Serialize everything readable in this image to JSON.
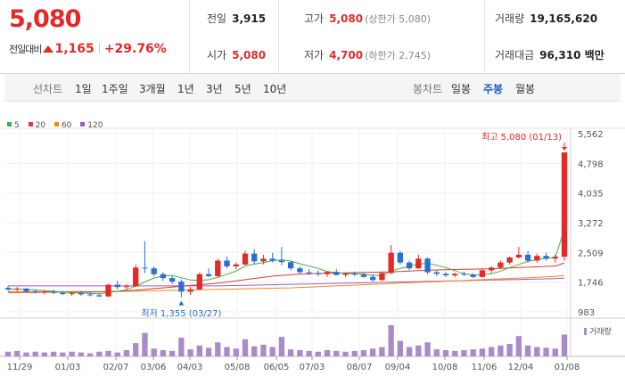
{
  "price": {
    "current": "5,080",
    "change_label": "전일대비",
    "change_amount": "1,165",
    "change_pct": "+29.76%"
  },
  "stats": {
    "prev_close": {
      "label": "전일",
      "value": "3,915"
    },
    "open": {
      "label": "시가",
      "value": "5,080"
    },
    "high": {
      "label": "고가",
      "value": "5,080",
      "sub": "(상한가 5,080)"
    },
    "low": {
      "label": "저가",
      "value": "4,700",
      "sub": "(하한가 2,745)"
    },
    "volume": {
      "label": "거래량",
      "value": "19,165,620"
    },
    "amount": {
      "label": "거래대금",
      "value": "96,310 백만"
    }
  },
  "toolbar": {
    "line_label": "선차트",
    "ranges": [
      "1일",
      "1주일",
      "3개월",
      "1년",
      "3년",
      "5년",
      "10년"
    ],
    "candle_label": "봉차트",
    "periods": [
      "일봉",
      "주봉",
      "월봉"
    ],
    "active_period": "주봉"
  },
  "legend": [
    {
      "label": "5",
      "color": "#3db33d"
    },
    {
      "label": "20",
      "color": "#e03a3a"
    },
    {
      "label": "60",
      "color": "#f08a1c"
    },
    {
      "label": "120",
      "color": "#9a5cc6"
    }
  ],
  "colors": {
    "up": "#e22a2a",
    "down": "#2b6ed6",
    "volume": "#a88bc8"
  },
  "chart_data": {
    "type": "candlestick",
    "y_ticks": [
      "5,562",
      "4,798",
      "4,035",
      "3,272",
      "2,509",
      "1,746",
      "983"
    ],
    "ylim": [
      983,
      5562
    ],
    "x_labels": [
      "11/29",
      "01/03",
      "02/07",
      "03/06",
      "04/03",
      "05/08",
      "06/05",
      "07/03",
      "08/07",
      "09/04",
      "10/08",
      "11/06",
      "12/04",
      "01/08"
    ],
    "high_annotation": "최고 5,080 (01/13)",
    "low_annotation": "최저 1,355 (03/27)",
    "volume_label": "거래량",
    "candles": [
      [
        1600,
        1650,
        1520,
        1560
      ],
      [
        1560,
        1620,
        1500,
        1580
      ],
      [
        1580,
        1600,
        1480,
        1510
      ],
      [
        1510,
        1560,
        1450,
        1480
      ],
      [
        1480,
        1540,
        1430,
        1500
      ],
      [
        1500,
        1560,
        1440,
        1470
      ],
      [
        1470,
        1520,
        1410,
        1440
      ],
      [
        1440,
        1500,
        1390,
        1460
      ],
      [
        1460,
        1520,
        1400,
        1430
      ],
      [
        1430,
        1480,
        1380,
        1410
      ],
      [
        1410,
        1460,
        1360,
        1380
      ],
      [
        1380,
        1700,
        1360,
        1680
      ],
      [
        1680,
        1780,
        1560,
        1620
      ],
      [
        1620,
        1700,
        1550,
        1640
      ],
      [
        1640,
        2200,
        1620,
        2120
      ],
      [
        2120,
        2800,
        1980,
        2100
      ],
      [
        2100,
        2150,
        1900,
        1950
      ],
      [
        1950,
        2000,
        1780,
        1850
      ],
      [
        1850,
        1900,
        1700,
        1760
      ],
      [
        1760,
        1820,
        1355,
        1500
      ],
      [
        1500,
        1620,
        1420,
        1560
      ],
      [
        1560,
        2000,
        1540,
        1950
      ],
      [
        1950,
        2100,
        1880,
        1900
      ],
      [
        1900,
        2350,
        1880,
        2300
      ],
      [
        2300,
        2400,
        2100,
        2150
      ],
      [
        2150,
        2250,
        2080,
        2200
      ],
      [
        2200,
        2550,
        2180,
        2480
      ],
      [
        2480,
        2600,
        2200,
        2280
      ],
      [
        2280,
        2450,
        2200,
        2350
      ],
      [
        2350,
        2500,
        2250,
        2300
      ],
      [
        2300,
        2650,
        2180,
        2260
      ],
      [
        2260,
        2300,
        2050,
        2100
      ],
      [
        2100,
        2150,
        1950,
        2000
      ],
      [
        2000,
        2080,
        1920,
        1980
      ],
      [
        1980,
        2050,
        1900,
        1950
      ],
      [
        1950,
        2020,
        1880,
        2010
      ],
      [
        2010,
        2080,
        1920,
        1930
      ],
      [
        1930,
        2000,
        1880,
        1960
      ],
      [
        1960,
        2020,
        1900,
        1940
      ],
      [
        1940,
        2000,
        1860,
        1880
      ],
      [
        1880,
        1950,
        1760,
        1800
      ],
      [
        1800,
        2000,
        1780,
        1980
      ],
      [
        1980,
        2700,
        1950,
        2500
      ],
      [
        2500,
        2550,
        2200,
        2250
      ],
      [
        2250,
        2300,
        2050,
        2100
      ],
      [
        2100,
        2450,
        2080,
        2350
      ],
      [
        2350,
        2380,
        1950,
        2000
      ],
      [
        2000,
        2050,
        1900,
        1960
      ],
      [
        1960,
        2000,
        1880,
        1920
      ],
      [
        1920,
        1990,
        1870,
        1960
      ],
      [
        1960,
        2020,
        1900,
        1940
      ],
      [
        1940,
        1980,
        1850,
        1880
      ],
      [
        1880,
        2080,
        1860,
        2050
      ],
      [
        2050,
        2150,
        1980,
        2120
      ],
      [
        2120,
        2300,
        2080,
        2250
      ],
      [
        2250,
        2400,
        2200,
        2380
      ],
      [
        2380,
        2650,
        2350,
        2450
      ],
      [
        2450,
        2550,
        2250,
        2300
      ],
      [
        2300,
        2480,
        2250,
        2420
      ],
      [
        2420,
        2500,
        2300,
        2350
      ],
      [
        2350,
        2450,
        2250,
        2400
      ],
      [
        2400,
        5080,
        2300,
        5080
      ]
    ],
    "volumes": [
      6,
      7,
      5,
      6,
      5,
      6,
      5,
      6,
      5,
      4,
      6,
      7,
      5,
      8,
      17,
      30,
      10,
      8,
      7,
      24,
      9,
      14,
      11,
      18,
      12,
      10,
      22,
      13,
      15,
      12,
      25,
      9,
      8,
      7,
      6,
      8,
      7,
      6,
      7,
      8,
      10,
      12,
      40,
      20,
      12,
      14,
      18,
      9,
      8,
      7,
      8,
      9,
      10,
      12,
      14,
      16,
      26,
      14,
      12,
      11,
      10,
      28
    ],
    "ma": {
      "ma5": [
        1560,
        1570,
        1565,
        1545,
        1530,
        1512,
        1490,
        1475,
        1468,
        1460,
        1445,
        1480,
        1510,
        1550,
        1640,
        1750,
        1850,
        1900,
        1920,
        1860,
        1800,
        1790,
        1810,
        1870,
        1950,
        2030,
        2160,
        2210,
        2250,
        2300,
        2320,
        2290,
        2220,
        2160,
        2100,
        2020,
        1990,
        1970,
        1960,
        1950,
        1920,
        1920,
        2030,
        2100,
        2150,
        2210,
        2230,
        2180,
        2120,
        2040,
        1960,
        1930,
        1930,
        1960,
        2030,
        2120,
        2200,
        2280,
        2330,
        2360,
        2380,
        3100
      ],
      "ma20": [
        1480,
        1480,
        1482,
        1484,
        1485,
        1487,
        1488,
        1490,
        1492,
        1494,
        1495,
        1500,
        1510,
        1520,
        1540,
        1560,
        1580,
        1600,
        1620,
        1640,
        1660,
        1680,
        1700,
        1720,
        1750,
        1780,
        1810,
        1840,
        1870,
        1900,
        1920,
        1940,
        1950,
        1960,
        1970,
        1975,
        1980,
        1985,
        1990,
        1995,
        2000,
        2005,
        2010,
        2020,
        2030,
        2040,
        2050,
        2060,
        2065,
        2070,
        2075,
        2080,
        2085,
        2090,
        2100,
        2110,
        2120,
        2130,
        2140,
        2150,
        2160,
        2240
      ],
      "ma60": [
        1500,
        1500,
        1500,
        1500,
        1500,
        1500,
        1500,
        1500,
        1500,
        1500,
        1500,
        1500,
        1505,
        1510,
        1515,
        1520,
        1525,
        1530,
        1535,
        1540,
        1545,
        1550,
        1555,
        1560,
        1565,
        1570,
        1575,
        1580,
        1585,
        1590,
        1595,
        1600,
        1610,
        1620,
        1630,
        1640,
        1650,
        1660,
        1670,
        1680,
        1690,
        1700,
        1710,
        1720,
        1730,
        1740,
        1750,
        1760,
        1770,
        1780,
        1790,
        1800,
        1810,
        1820,
        1830,
        1840,
        1850,
        1860,
        1870,
        1880,
        1890,
        1920
      ],
      "ma120": [
        1650,
        1650,
        1650,
        1650,
        1650,
        1650,
        1650,
        1650,
        1650,
        1650,
        1650,
        1650,
        1650,
        1650,
        1650,
        1650,
        1650,
        1650,
        1650,
        1650,
        1650,
        1650,
        1650,
        1650,
        1655,
        1660,
        1665,
        1670,
        1675,
        1680,
        1685,
        1690,
        1695,
        1700,
        1705,
        1710,
        1715,
        1720,
        1725,
        1730,
        1735,
        1740,
        1745,
        1750,
        1755,
        1760,
        1765,
        1770,
        1775,
        1780,
        1785,
        1790,
        1795,
        1800,
        1805,
        1810,
        1815,
        1820,
        1825,
        1830,
        1835,
        1850
      ]
    }
  }
}
